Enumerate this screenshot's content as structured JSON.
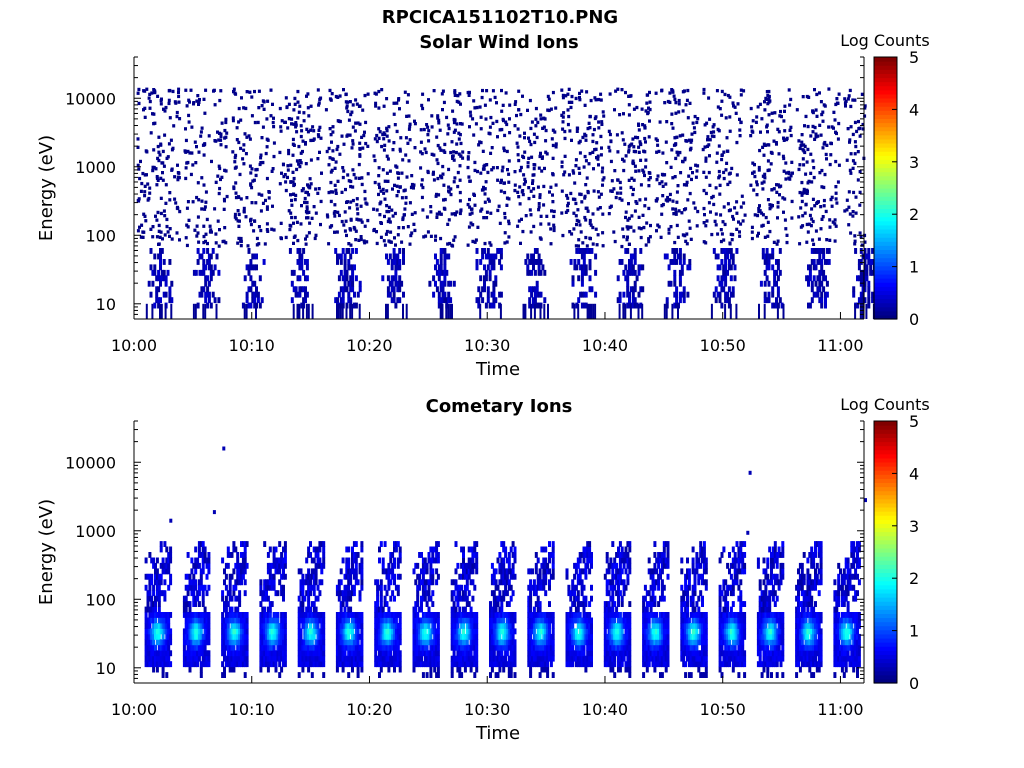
{
  "figure": {
    "file_title": "RPCICA151102T10.PNG"
  },
  "chart_data": [
    {
      "type": "heatmap",
      "title": "Solar Wind Ions",
      "xlabel": "Time",
      "ylabel": "Energy (eV)",
      "x_ticks": [
        "10:00",
        "10:10",
        "10:20",
        "10:30",
        "10:40",
        "10:50",
        "11:00"
      ],
      "x_range": [
        "10:00",
        "11:02"
      ],
      "y_scale": "log",
      "y_ticks": [
        10,
        100,
        1000,
        10000
      ],
      "y_range": [
        6,
        40000
      ],
      "colorbar": {
        "label": "Log Counts",
        "range": [
          0,
          5
        ],
        "ticks": [
          0,
          1,
          2,
          3,
          4,
          5
        ],
        "colormap": "jet"
      },
      "features": {
        "sweep_period_min": 4,
        "first_sweep_time": "10:02",
        "last_sweep_time": "11:02",
        "low_energy_band_eV": [
          8,
          60
        ],
        "low_energy_log_counts": [
          0.1,
          0.4
        ],
        "background_range_eV": [
          60,
          12000
        ],
        "background_log_counts": 0.05
      }
    },
    {
      "type": "heatmap",
      "title": "Cometary Ions",
      "xlabel": "Time",
      "ylabel": "Energy (eV)",
      "x_ticks": [
        "10:00",
        "10:10",
        "10:20",
        "10:30",
        "10:40",
        "10:50",
        "11:00"
      ],
      "x_range": [
        "10:00",
        "11:02"
      ],
      "y_scale": "log",
      "y_ticks": [
        10,
        100,
        1000,
        10000
      ],
      "y_range": [
        6,
        40000
      ],
      "colorbar": {
        "label": "Log Counts",
        "range": [
          0,
          5
        ],
        "ticks": [
          0,
          1,
          2,
          3,
          4,
          5
        ],
        "colormap": "jet"
      },
      "features": {
        "sweep_period_min": 3.25,
        "first_sweep_time": "10:02",
        "last_sweep_time": "11:02",
        "peak_energy_eV": 30,
        "peak_log_counts": 1.6,
        "tail_max_energy_eV": 700,
        "isolated_points": [
          {
            "time": "10:07.5",
            "energy": 17000
          },
          {
            "time": "10:03",
            "energy": 1500
          },
          {
            "time": "10:06.7",
            "energy": 2000
          },
          {
            "time": "10:52.2",
            "energy": 7500
          },
          {
            "time": "10:52",
            "energy": 1000
          },
          {
            "time": "11:02",
            "energy": 3000
          }
        ]
      }
    }
  ]
}
